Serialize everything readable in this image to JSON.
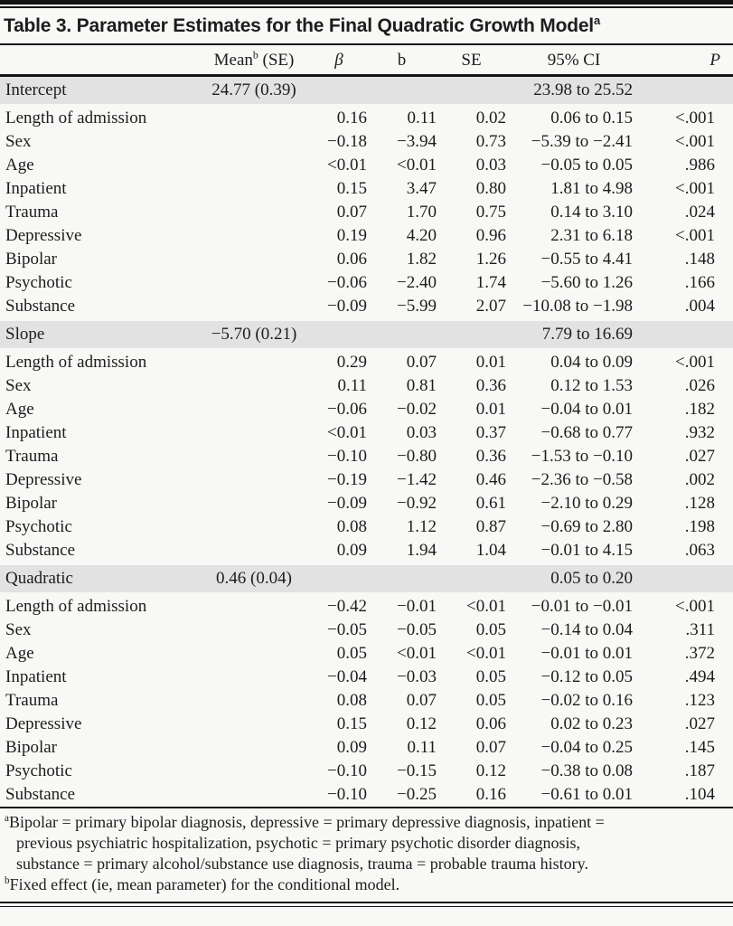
{
  "title": {
    "text": "Table 3. Parameter Estimates for the Final Quadratic Growth Model",
    "sup": "a"
  },
  "header": {
    "mean_base": "Mean",
    "mean_sup": "b",
    "mean_rest": " (SE)",
    "beta": "β",
    "b": "b",
    "se": "SE",
    "ci": "95% CI",
    "p": "P"
  },
  "sections": [
    {
      "name": "Intercept",
      "mean": "24.77 (0.39)",
      "ci": "23.98 to 25.52",
      "rows": [
        {
          "param": "Length of admission",
          "beta": "0.16",
          "b": "0.11",
          "se": "0.02",
          "ci": "0.06 to 0.15",
          "p": "<.001"
        },
        {
          "param": "Sex",
          "beta": "−0.18",
          "b": "−3.94",
          "se": "0.73",
          "ci": "−5.39 to −2.41",
          "p": "<.001"
        },
        {
          "param": "Age",
          "beta": "<0.01",
          "b": "<0.01",
          "se": "0.03",
          "ci": "−0.05 to 0.05",
          "p": ".986"
        },
        {
          "param": "Inpatient",
          "beta": "0.15",
          "b": "3.47",
          "se": "0.80",
          "ci": "1.81 to 4.98",
          "p": "<.001"
        },
        {
          "param": "Trauma",
          "beta": "0.07",
          "b": "1.70",
          "se": "0.75",
          "ci": "0.14 to 3.10",
          "p": ".024"
        },
        {
          "param": "Depressive",
          "beta": "0.19",
          "b": "4.20",
          "se": "0.96",
          "ci": "2.31 to 6.18",
          "p": "<.001"
        },
        {
          "param": "Bipolar",
          "beta": "0.06",
          "b": "1.82",
          "se": "1.26",
          "ci": "−0.55 to 4.41",
          "p": ".148"
        },
        {
          "param": "Psychotic",
          "beta": "−0.06",
          "b": "−2.40",
          "se": "1.74",
          "ci": "−5.60 to 1.26",
          "p": ".166"
        },
        {
          "param": "Substance",
          "beta": "−0.09",
          "b": "−5.99",
          "se": "2.07",
          "ci": "−10.08 to −1.98",
          "p": ".004"
        }
      ]
    },
    {
      "name": "Slope",
      "mean": "−5.70 (0.21)",
      "ci": "7.79 to 16.69",
      "rows": [
        {
          "param": "Length of admission",
          "beta": "0.29",
          "b": "0.07",
          "se": "0.01",
          "ci": "0.04 to 0.09",
          "p": "<.001"
        },
        {
          "param": "Sex",
          "beta": "0.11",
          "b": "0.81",
          "se": "0.36",
          "ci": "0.12 to 1.53",
          "p": ".026"
        },
        {
          "param": "Age",
          "beta": "−0.06",
          "b": "−0.02",
          "se": "0.01",
          "ci": "−0.04 to 0.01",
          "p": ".182"
        },
        {
          "param": "Inpatient",
          "beta": "<0.01",
          "b": "0.03",
          "se": "0.37",
          "ci": "−0.68 to 0.77",
          "p": ".932"
        },
        {
          "param": "Trauma",
          "beta": "−0.10",
          "b": "−0.80",
          "se": "0.36",
          "ci": "−1.53 to −0.10",
          "p": ".027"
        },
        {
          "param": "Depressive",
          "beta": "−0.19",
          "b": "−1.42",
          "se": "0.46",
          "ci": "−2.36 to −0.58",
          "p": ".002"
        },
        {
          "param": "Bipolar",
          "beta": "−0.09",
          "b": "−0.92",
          "se": "0.61",
          "ci": "−2.10 to 0.29",
          "p": ".128"
        },
        {
          "param": "Psychotic",
          "beta": "0.08",
          "b": "1.12",
          "se": "0.87",
          "ci": "−0.69 to 2.80",
          "p": ".198"
        },
        {
          "param": "Substance",
          "beta": "0.09",
          "b": "1.94",
          "se": "1.04",
          "ci": "−0.01 to 4.15",
          "p": ".063"
        }
      ]
    },
    {
      "name": "Quadratic",
      "mean": "0.46 (0.04)",
      "ci": "0.05 to 0.20",
      "rows": [
        {
          "param": "Length of admission",
          "beta": "−0.42",
          "b": "−0.01",
          "se": "<0.01",
          "ci": "−0.01 to −0.01",
          "p": "<.001"
        },
        {
          "param": "Sex",
          "beta": "−0.05",
          "b": "−0.05",
          "se": "0.05",
          "ci": "−0.14 to 0.04",
          "p": ".311"
        },
        {
          "param": "Age",
          "beta": "0.05",
          "b": "<0.01",
          "se": "<0.01",
          "ci": "−0.01 to 0.01",
          "p": ".372"
        },
        {
          "param": "Inpatient",
          "beta": "−0.04",
          "b": "−0.03",
          "se": "0.05",
          "ci": "−0.12 to 0.05",
          "p": ".494"
        },
        {
          "param": "Trauma",
          "beta": "0.08",
          "b": "0.07",
          "se": "0.05",
          "ci": "−0.02 to 0.16",
          "p": ".123"
        },
        {
          "param": "Depressive",
          "beta": "0.15",
          "b": "0.12",
          "se": "0.06",
          "ci": "0.02 to 0.23",
          "p": ".027"
        },
        {
          "param": "Bipolar",
          "beta": "0.09",
          "b": "0.11",
          "se": "0.07",
          "ci": "−0.04 to 0.25",
          "p": ".145"
        },
        {
          "param": "Psychotic",
          "beta": "−0.10",
          "b": "−0.15",
          "se": "0.12",
          "ci": "−0.38 to 0.08",
          "p": ".187"
        },
        {
          "param": "Substance",
          "beta": "−0.10",
          "b": "−0.25",
          "se": "0.16",
          "ci": "−0.61 to 0.01",
          "p": ".104"
        }
      ]
    }
  ],
  "footnotes": [
    {
      "sup": "a",
      "text": "Bipolar = primary bipolar diagnosis, depressive = primary depressive diagnosis, inpatient = previous psychiatric hospitalization, psychotic = primary psychotic disorder diagnosis, substance = primary alcohol/substance use diagnosis, trauma = probable trauma history."
    },
    {
      "sup": "b",
      "text": "Fixed effect (ie, mean parameter) for the conditional model."
    }
  ],
  "colors": {
    "background": "#f8f8f6",
    "section_band": "#e2e2e2",
    "rule": "#131313",
    "text": "#1d1d1d"
  }
}
